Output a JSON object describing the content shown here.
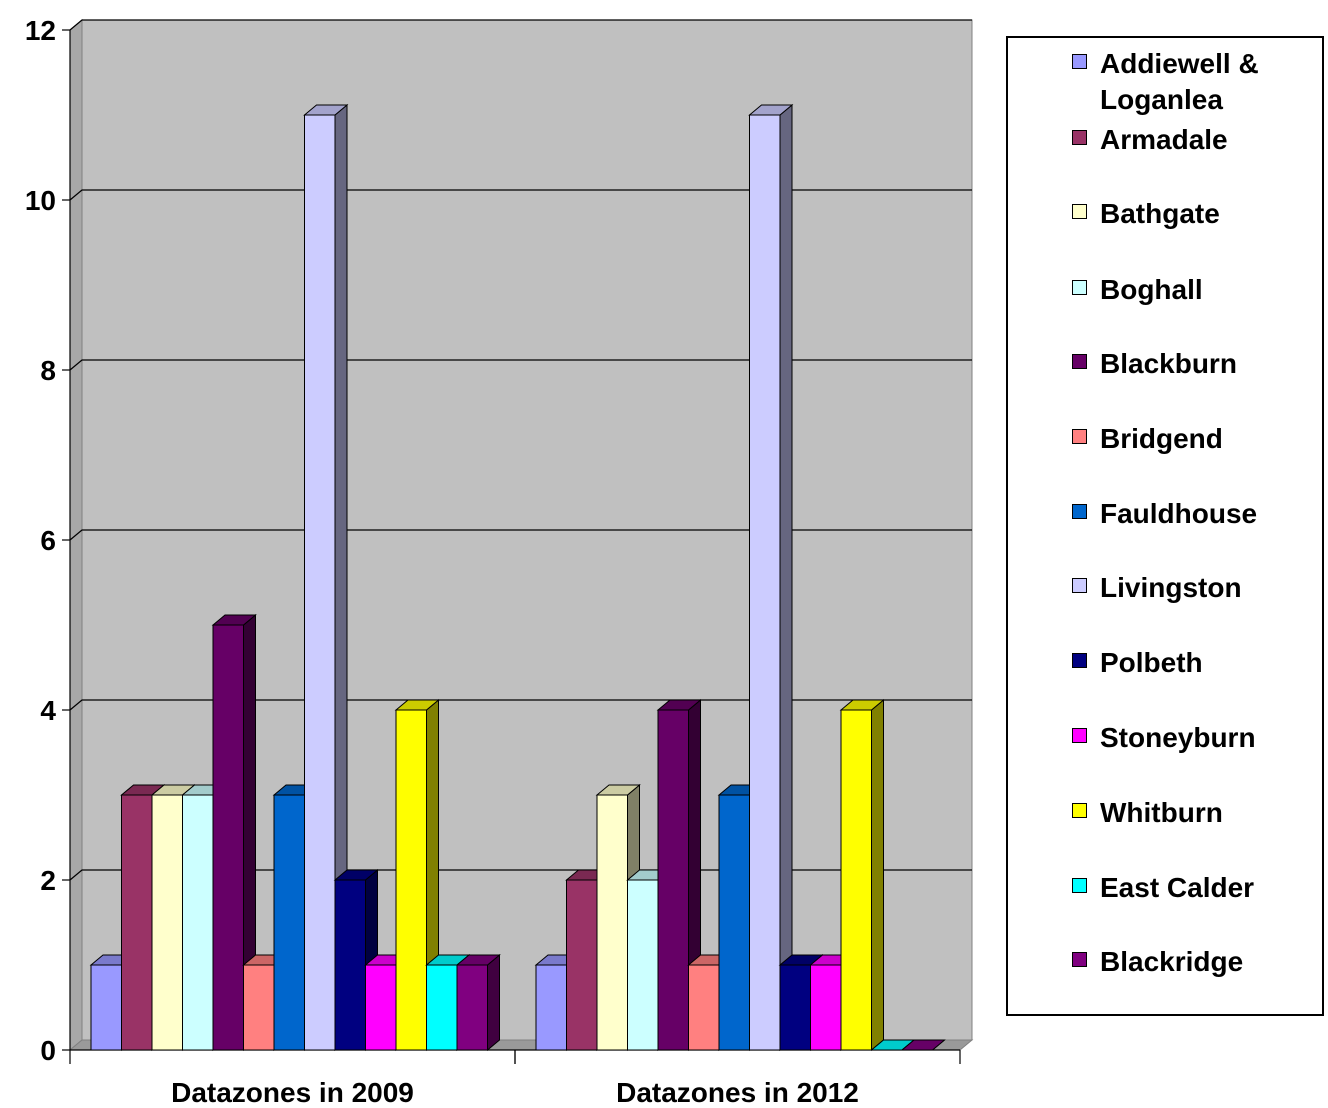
{
  "chart_data": {
    "type": "bar",
    "categories": [
      "Datazones in 2009",
      "Datazones in 2012"
    ],
    "ylim": [
      0,
      12
    ],
    "yticks": [
      0,
      2,
      4,
      6,
      8,
      10,
      12
    ],
    "grid": true,
    "legend_position": "right",
    "series": [
      {
        "name": "Addiewell & Loganlea",
        "color": "#9999ff",
        "values": [
          1,
          1
        ]
      },
      {
        "name": "Armadale",
        "color": "#993366",
        "values": [
          3,
          2
        ]
      },
      {
        "name": "Bathgate",
        "color": "#ffffcc",
        "values": [
          3,
          3
        ]
      },
      {
        "name": "Boghall",
        "color": "#ccffff",
        "values": [
          3,
          2
        ]
      },
      {
        "name": "Blackburn",
        "color": "#660066",
        "values": [
          5,
          4
        ]
      },
      {
        "name": "Bridgend",
        "color": "#ff8080",
        "values": [
          1,
          1
        ]
      },
      {
        "name": "Fauldhouse",
        "color": "#0066cc",
        "values": [
          3,
          3
        ]
      },
      {
        "name": "Livingston",
        "color": "#ccccff",
        "values": [
          11,
          11
        ]
      },
      {
        "name": "Polbeth",
        "color": "#000080",
        "values": [
          2,
          1
        ]
      },
      {
        "name": "Stoneyburn",
        "color": "#ff00ff",
        "values": [
          1,
          1
        ]
      },
      {
        "name": "Whitburn",
        "color": "#ffff00",
        "values": [
          4,
          4
        ]
      },
      {
        "name": "East Calder",
        "color": "#00ffff",
        "values": [
          1,
          0
        ]
      },
      {
        "name": "Blackridge",
        "color": "#800080",
        "values": [
          1,
          0
        ]
      }
    ]
  }
}
